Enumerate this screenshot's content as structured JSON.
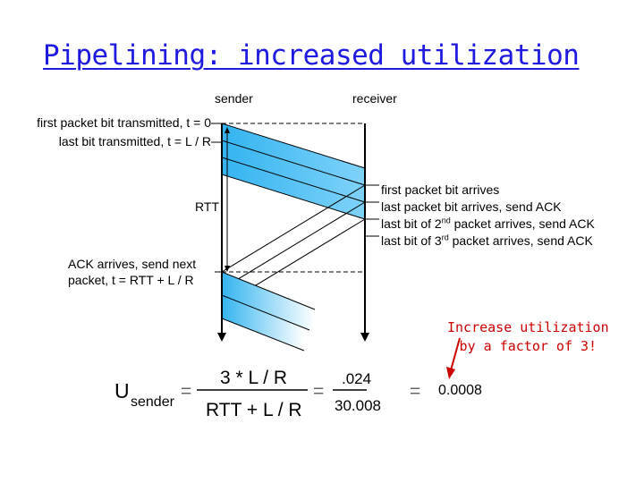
{
  "title": "Pipelining: increased utilization",
  "columns": {
    "sender": "sender",
    "receiver": "receiver"
  },
  "sender_events": {
    "first_bit": "first packet bit transmitted, t = 0",
    "last_bit": "last bit transmitted, t = L / R",
    "rtt": "RTT",
    "ack_line1": "ACK arrives, send next",
    "ack_line2": "packet, t = RTT + L / R"
  },
  "receiver_events": {
    "first_arrives": "first packet bit arrives",
    "last_arrives": "last packet bit arrives, send ACK",
    "second_prefix": "last bit of 2",
    "second_sup": "nd",
    "second_suffix": " packet arrives, send ACK",
    "third_prefix": "last bit of 3",
    "third_sup": "rd",
    "third_suffix": " packet arrives, send ACK"
  },
  "note": {
    "line1": "Increase utilization",
    "line2": "by a factor of 3!"
  },
  "formula": {
    "u": "U",
    "u_sub": "sender",
    "eq1": "=",
    "num": "3 * L / R",
    "den": "RTT + L / R",
    "eq2": "=",
    "num2": ".024",
    "den2": "30.008",
    "eq3": "=",
    "result": "0.0008"
  },
  "colors": {
    "title": "#1f1ae0",
    "packet": "#33b4f0",
    "note": "#cc0000"
  }
}
